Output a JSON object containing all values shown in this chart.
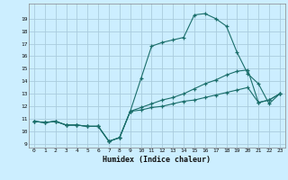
{
  "xlabel": "Humidex (Indice chaleur)",
  "bg_color": "#cceeff",
  "grid_color": "#aaccdd",
  "line_color": "#1a6e6a",
  "xlim": [
    -0.5,
    23.5
  ],
  "ylim": [
    8.7,
    20.2
  ],
  "yticks": [
    9,
    10,
    11,
    12,
    13,
    14,
    15,
    16,
    17,
    18,
    19
  ],
  "xticks": [
    0,
    1,
    2,
    3,
    4,
    5,
    6,
    7,
    8,
    9,
    10,
    11,
    12,
    13,
    14,
    15,
    16,
    17,
    18,
    19,
    20,
    21,
    22,
    23
  ],
  "curve1_x": [
    0,
    1,
    2,
    3,
    4,
    5,
    6,
    7,
    8,
    9,
    10,
    11,
    12,
    13,
    14,
    15,
    16,
    17,
    18,
    19,
    20,
    21,
    22,
    23
  ],
  "curve1_y": [
    10.8,
    10.7,
    10.8,
    10.5,
    10.5,
    10.4,
    10.4,
    9.2,
    9.5,
    11.6,
    14.2,
    16.8,
    17.1,
    17.3,
    17.5,
    19.3,
    19.4,
    19.0,
    18.4,
    16.3,
    14.6,
    13.8,
    12.2,
    13.0
  ],
  "curve2_x": [
    0,
    1,
    2,
    3,
    4,
    5,
    6,
    7,
    8,
    9,
    10,
    11,
    12,
    13,
    14,
    15,
    16,
    17,
    18,
    19,
    20,
    21,
    22,
    23
  ],
  "curve2_y": [
    10.8,
    10.7,
    10.8,
    10.5,
    10.5,
    10.4,
    10.4,
    9.2,
    9.5,
    11.6,
    11.9,
    12.2,
    12.5,
    12.7,
    13.0,
    13.4,
    13.8,
    14.1,
    14.5,
    14.8,
    14.9,
    12.3,
    12.5,
    13.0
  ],
  "curve3_x": [
    0,
    1,
    2,
    3,
    4,
    5,
    6,
    7,
    8,
    9,
    10,
    11,
    12,
    13,
    14,
    15,
    16,
    17,
    18,
    19,
    20,
    21,
    22,
    23
  ],
  "curve3_y": [
    10.8,
    10.7,
    10.8,
    10.5,
    10.5,
    10.4,
    10.4,
    9.2,
    9.5,
    11.6,
    11.7,
    11.9,
    12.0,
    12.2,
    12.4,
    12.5,
    12.7,
    12.9,
    13.1,
    13.3,
    13.5,
    12.3,
    12.5,
    13.0
  ]
}
